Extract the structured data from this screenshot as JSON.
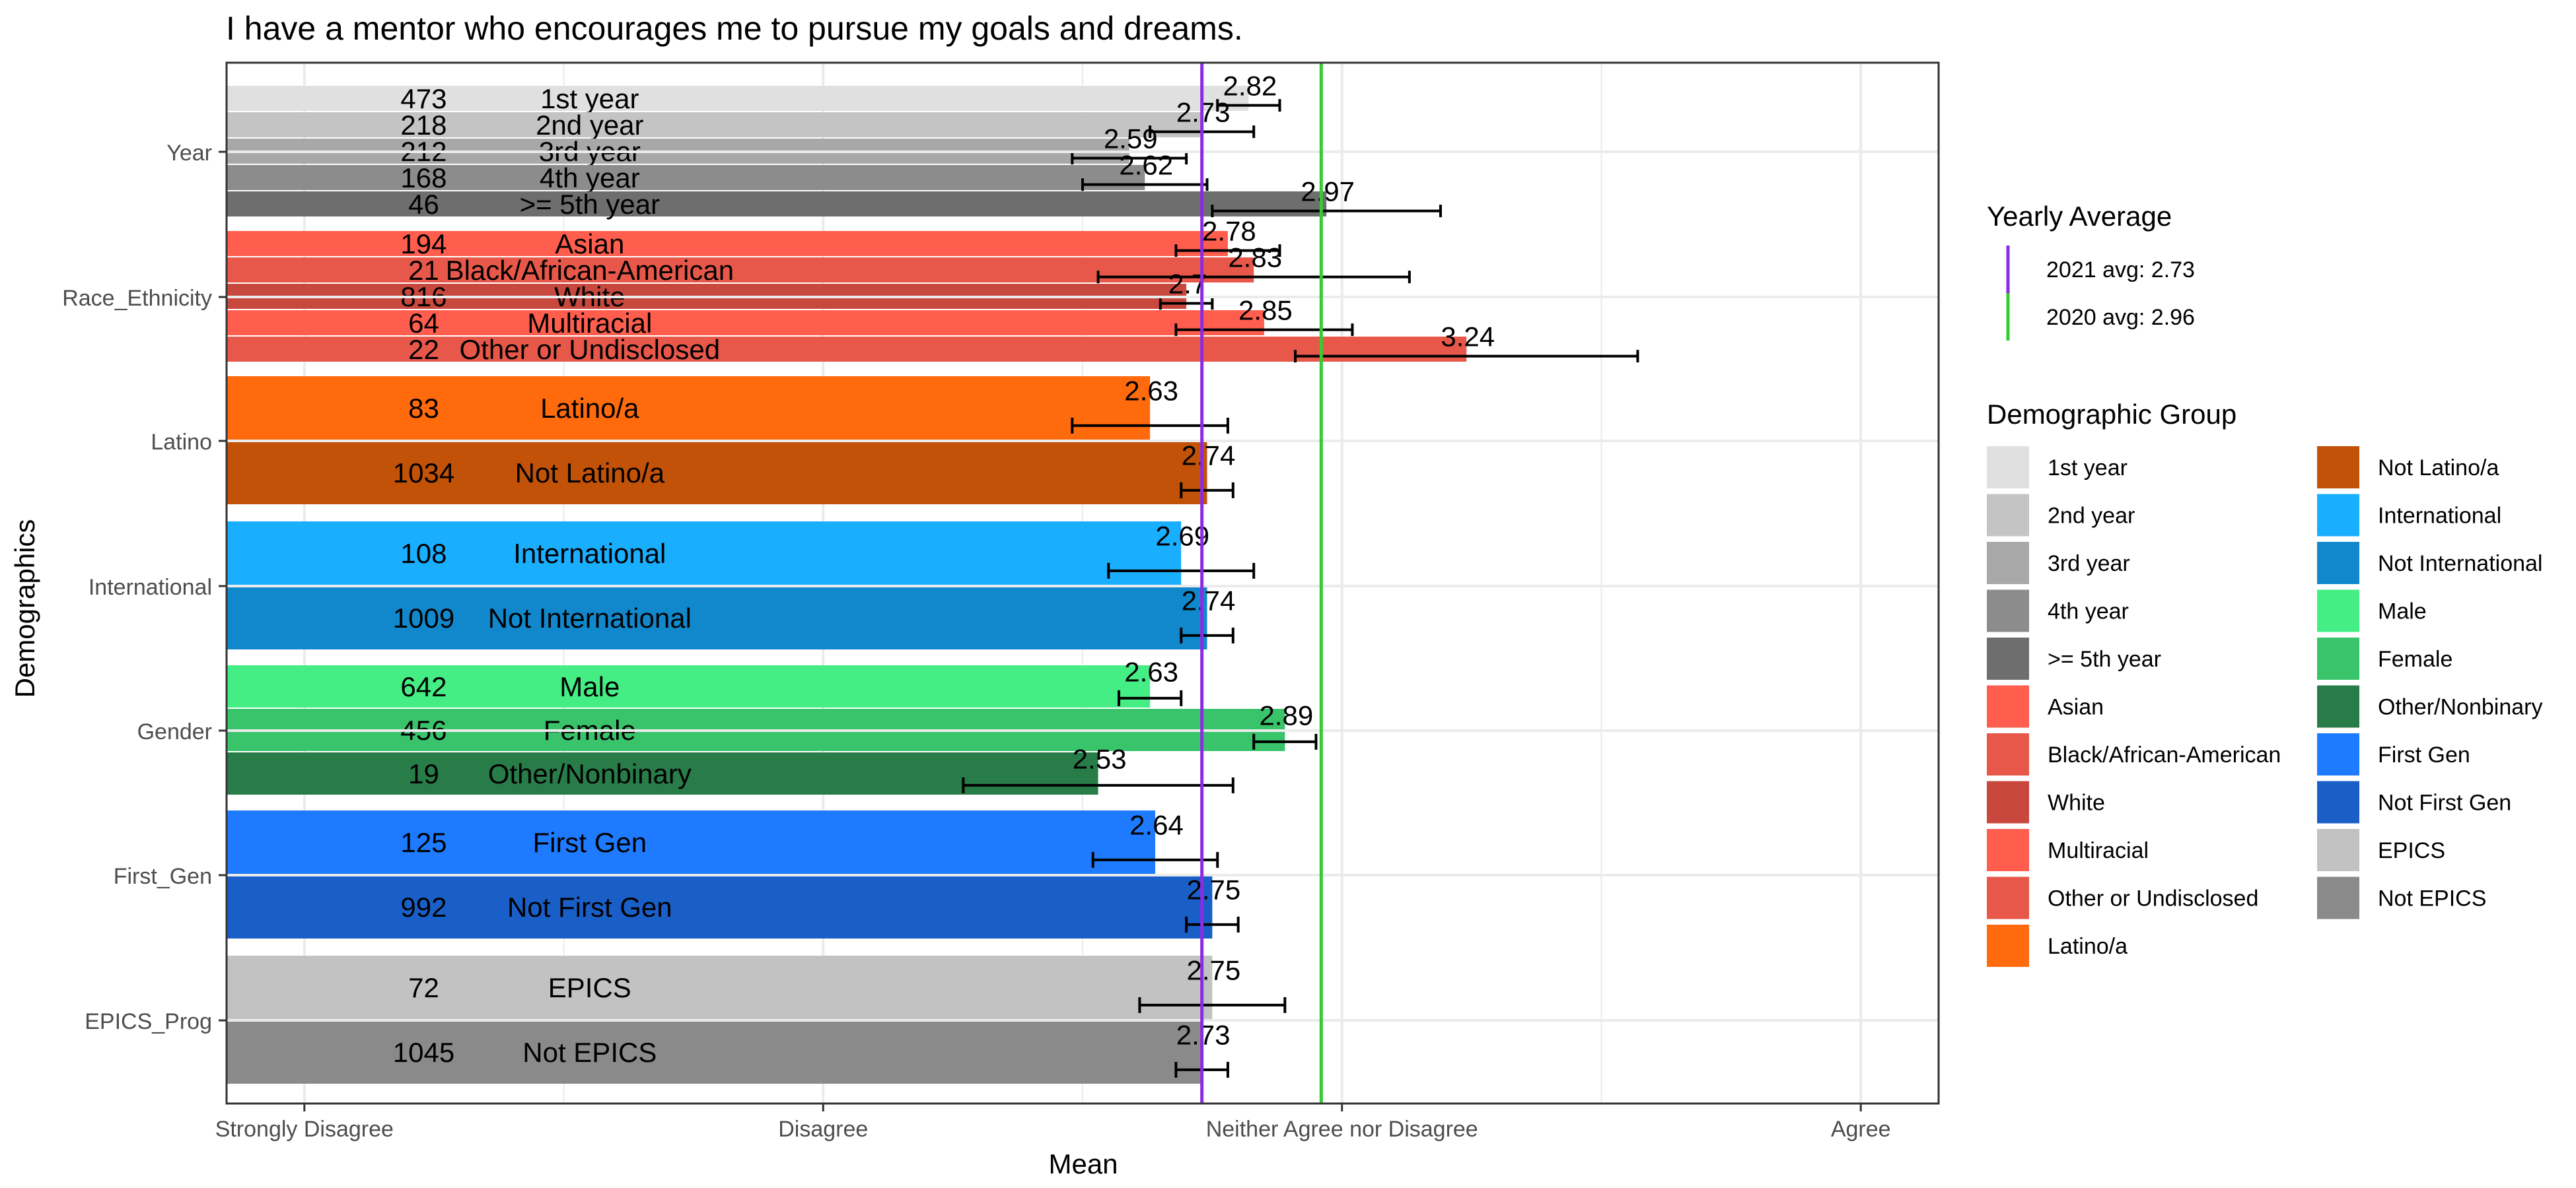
{
  "chart_data": {
    "type": "bar",
    "orientation": "horizontal",
    "title": "I have a mentor who encourages me to pursue my goals and dreams.",
    "xlabel": "Mean",
    "ylabel": "Demographics",
    "xlim": [
      0.85,
      4.15
    ],
    "x_ticks": [
      {
        "value": 1,
        "label": "Strongly Disagree"
      },
      {
        "value": 2,
        "label": "Disagree"
      },
      {
        "value": 3,
        "label": "Neither Agree nor Disagree"
      },
      {
        "value": 4,
        "label": "Agree"
      }
    ],
    "grid": true,
    "legend_position": "right",
    "reference_lines": {
      "title": "Yearly Average",
      "items": [
        {
          "label": "2021 avg: 2.73",
          "value": 2.73,
          "color": "#8B2BE2"
        },
        {
          "label": "2020 avg: 2.96",
          "value": 2.96,
          "color": "#33CC33"
        }
      ]
    },
    "group_legend_title": "Demographic Group",
    "groups": [
      {
        "name": "Year",
        "bars": [
          {
            "label": "1st year",
            "n": "473",
            "mean": 2.82,
            "err_low": 2.76,
            "err_high": 2.88,
            "color": "#E0E0E0"
          },
          {
            "label": "2nd year",
            "n": "218",
            "mean": 2.73,
            "err_low": 2.63,
            "err_high": 2.83,
            "color": "#C4C4C4"
          },
          {
            "label": "3rd year",
            "n": "212",
            "mean": 2.59,
            "err_low": 2.48,
            "err_high": 2.7,
            "color": "#A8A8A8"
          },
          {
            "label": "4th year",
            "n": "168",
            "mean": 2.62,
            "err_low": 2.5,
            "err_high": 2.74,
            "color": "#8C8C8C"
          },
          {
            "label": ">= 5th year",
            "n": "46",
            "mean": 2.97,
            "err_low": 2.75,
            "err_high": 3.19,
            "color": "#6E6E6E"
          }
        ]
      },
      {
        "name": "Race_Ethnicity",
        "bars": [
          {
            "label": "Asian",
            "n": "194",
            "mean": 2.78,
            "err_low": 2.68,
            "err_high": 2.88,
            "color": "#FF5E4E"
          },
          {
            "label": "Black/African-American",
            "n": "21",
            "mean": 2.83,
            "err_low": 2.53,
            "err_high": 3.13,
            "color": "#E8584A"
          },
          {
            "label": "White",
            "n": "816",
            "mean": 2.7,
            "err_low": 2.65,
            "err_high": 2.75,
            "color": "#C9483E"
          },
          {
            "label": "Multiracial",
            "n": "64",
            "mean": 2.85,
            "err_low": 2.68,
            "err_high": 3.02,
            "color": "#FF5E4E"
          },
          {
            "label": "Other or Undisclosed",
            "n": "22",
            "mean": 3.24,
            "err_low": 2.91,
            "err_high": 3.57,
            "color": "#E8584A"
          }
        ]
      },
      {
        "name": "Latino",
        "bars": [
          {
            "label": "Latino/a",
            "n": "83",
            "mean": 2.63,
            "err_low": 2.48,
            "err_high": 2.78,
            "color": "#FF6A0D"
          },
          {
            "label": "Not Latino/a",
            "n": "1034",
            "mean": 2.74,
            "err_low": 2.69,
            "err_high": 2.79,
            "color": "#C25208"
          }
        ]
      },
      {
        "name": "International",
        "bars": [
          {
            "label": "International",
            "n": "108",
            "mean": 2.69,
            "err_low": 2.55,
            "err_high": 2.83,
            "color": "#1AAEFF"
          },
          {
            "label": "Not International",
            "n": "1009",
            "mean": 2.74,
            "err_low": 2.69,
            "err_high": 2.79,
            "color": "#1188CC"
          }
        ]
      },
      {
        "name": "Gender",
        "bars": [
          {
            "label": "Male",
            "n": "642",
            "mean": 2.63,
            "err_low": 2.57,
            "err_high": 2.69,
            "color": "#45EE85"
          },
          {
            "label": "Female",
            "n": "456",
            "mean": 2.89,
            "err_low": 2.83,
            "err_high": 2.95,
            "color": "#39C46B"
          },
          {
            "label": "Other/Nonbinary",
            "n": "19",
            "mean": 2.53,
            "err_low": 2.27,
            "err_high": 2.79,
            "color": "#287C48"
          }
        ]
      },
      {
        "name": "First_Gen",
        "bars": [
          {
            "label": "First Gen",
            "n": "125",
            "mean": 2.64,
            "err_low": 2.52,
            "err_high": 2.76,
            "color": "#1E7BFF"
          },
          {
            "label": "Not First Gen",
            "n": "992",
            "mean": 2.75,
            "err_low": 2.7,
            "err_high": 2.8,
            "color": "#1A5FC8"
          }
        ]
      },
      {
        "name": "EPICS_Prog",
        "bars": [
          {
            "label": "EPICS",
            "n": "72",
            "mean": 2.75,
            "err_low": 2.61,
            "err_high": 2.89,
            "color": "#C2C2C2"
          },
          {
            "label": "Not EPICS",
            "n": "1045",
            "mean": 2.73,
            "err_low": 2.68,
            "err_high": 2.78,
            "color": "#8A8A8A"
          }
        ]
      }
    ]
  }
}
